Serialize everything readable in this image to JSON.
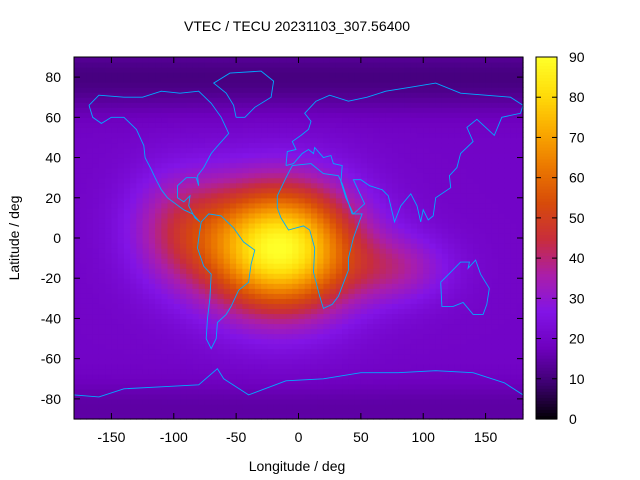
{
  "chart_data": {
    "type": "heatmap",
    "title": "VTEC / TECU 20231103_307.56400",
    "xlabel": "Longitude / deg",
    "ylabel": "Latitude / deg",
    "xlim": [
      -180,
      180
    ],
    "ylim": [
      -90,
      90
    ],
    "x_ticks": [
      "-150",
      "-100",
      "-50",
      "0",
      "50",
      "100",
      "150"
    ],
    "x_tick_values": [
      -150,
      -100,
      -50,
      0,
      50,
      100,
      150
    ],
    "y_ticks": [
      "80",
      "60",
      "40",
      "20",
      "0",
      "-20",
      "-40",
      "-60",
      "-80"
    ],
    "y_tick_values": [
      80,
      60,
      40,
      20,
      0,
      -20,
      -40,
      -60,
      -80
    ],
    "colorbar": {
      "range": [
        0,
        90
      ],
      "ticks": [
        "90",
        "80",
        "70",
        "60",
        "50",
        "40",
        "30",
        "20",
        "10",
        "0"
      ],
      "tick_values": [
        90,
        80,
        70,
        60,
        50,
        40,
        30,
        20,
        10,
        0
      ],
      "colormap": "gnuplot-hot-purple"
    },
    "peak": {
      "lon": -15,
      "lat": -5,
      "vtec": 90
    },
    "background_vtec": 20,
    "coastline_color": "#00aaff"
  }
}
